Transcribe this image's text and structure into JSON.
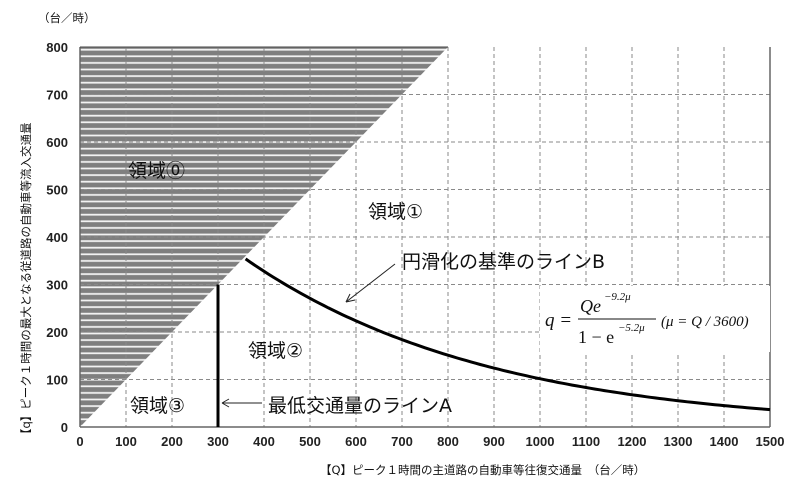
{
  "chart_data": {
    "type": "line",
    "y_unit": "（台／時）",
    "xlabel": "【Q】ピーク１時間の主道路の自動車等往復交通量　（台／時）",
    "ylabel": "【q】ピーク１時間の最大となる従道路の自動車等流入交通量",
    "xlim": [
      0,
      1500
    ],
    "ylim": [
      0,
      800
    ],
    "x_ticks": [
      0,
      100,
      200,
      300,
      400,
      500,
      600,
      700,
      800,
      900,
      1000,
      1100,
      1200,
      1300,
      1400,
      1500
    ],
    "y_ticks": [
      0,
      100,
      200,
      300,
      400,
      500,
      600,
      700,
      800
    ],
    "grid": true,
    "shaded_region": {
      "name": "領域⓪",
      "condition": "q > Q"
    },
    "regions": [
      {
        "label": "領域⓪"
      },
      {
        "label": "領域①"
      },
      {
        "label": "領域②"
      },
      {
        "label": "領域③"
      }
    ],
    "series": [
      {
        "name": "最低交通量のラインA",
        "type": "vertical",
        "x": 300,
        "y_range": [
          0,
          300
        ]
      },
      {
        "name": "円滑化の基準のラインB",
        "type": "curve",
        "x_range": [
          360,
          1500
        ],
        "formula": "q = Q e^(-9.2μ) / (1 - e^(-5.2μ)), μ = Q/3600"
      }
    ],
    "annotations": {
      "line_b": "円滑化の基準のラインB",
      "line_a": "最低交通量のラインA",
      "formula_q": "q =",
      "formula_num": "Qe",
      "formula_num_exp": "−9.2μ",
      "formula_den": "1 − e",
      "formula_den_exp": "−5.2μ",
      "formula_mu": "(μ = Q / 3600)"
    }
  }
}
